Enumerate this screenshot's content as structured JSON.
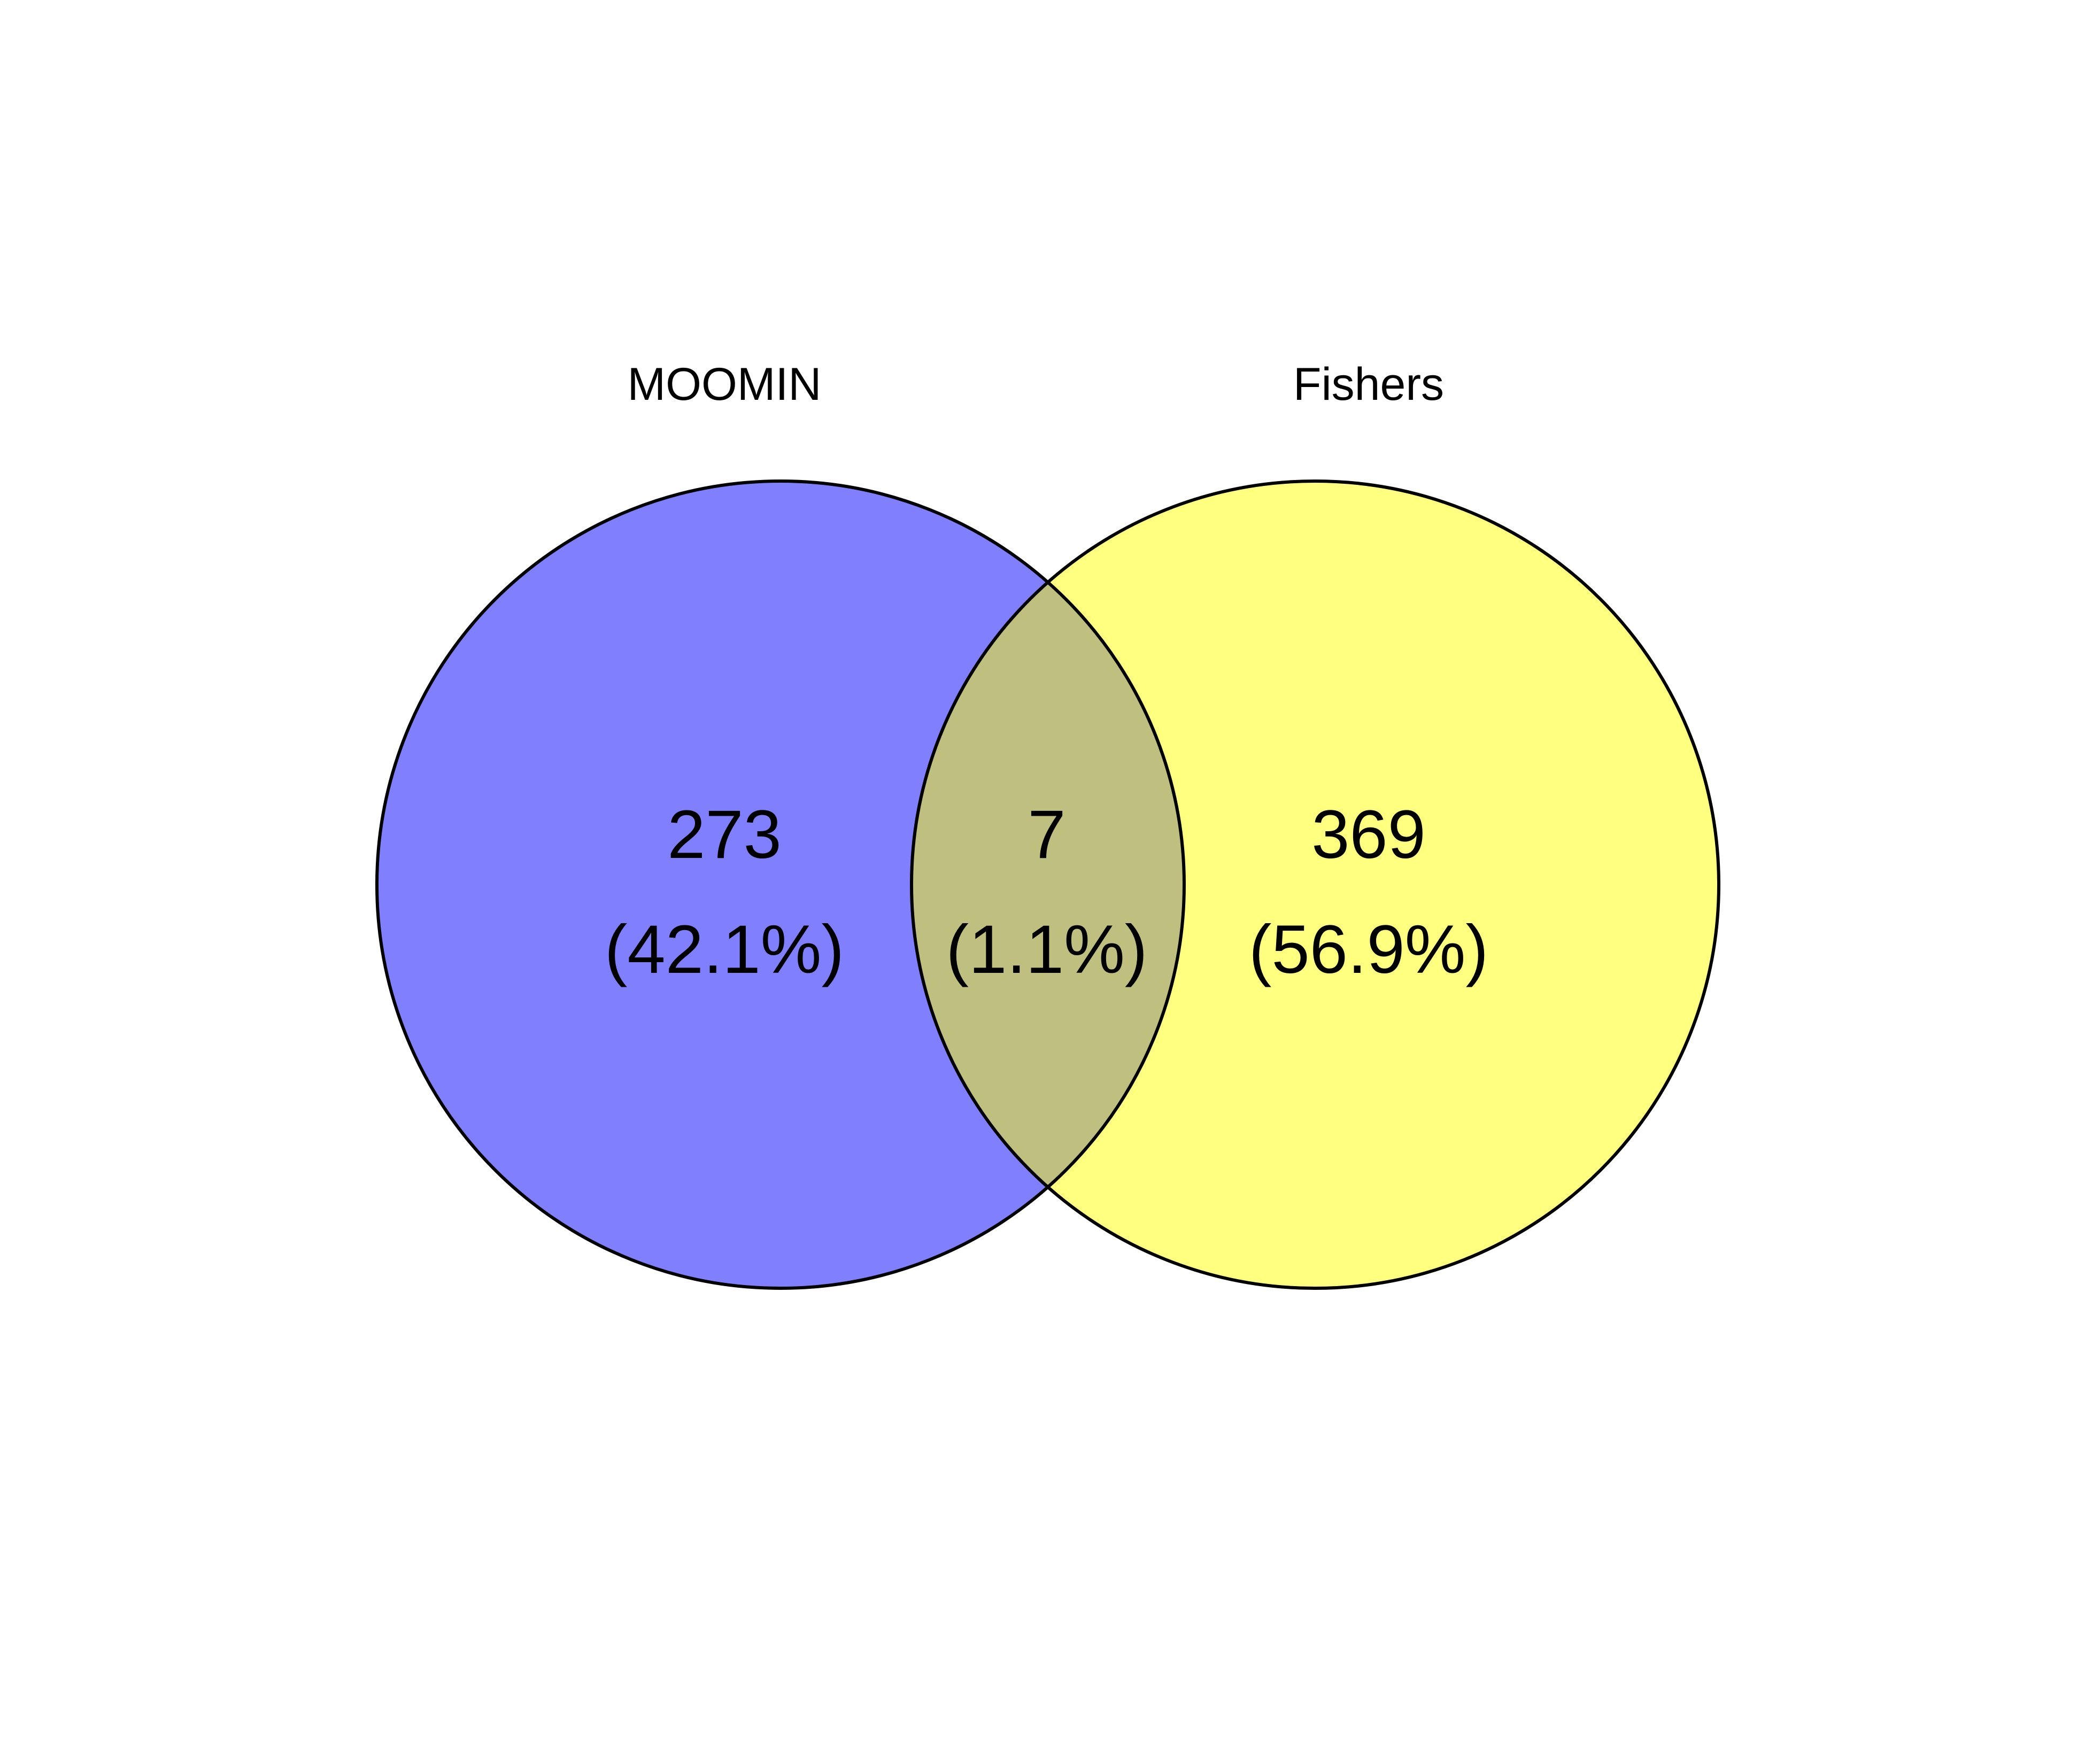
{
  "venn": {
    "sets": [
      {
        "name": "MOOMIN",
        "color": "#8080ff"
      },
      {
        "name": "Fishers",
        "color": "#ffff80"
      }
    ],
    "overlap_color": "#bfbf80",
    "regions": {
      "left_only": {
        "count": "273",
        "percent": "(42.1%)"
      },
      "both": {
        "count": "7",
        "percent": "(1.1%)"
      },
      "right_only": {
        "count": "369",
        "percent": "(56.9%)"
      }
    }
  }
}
